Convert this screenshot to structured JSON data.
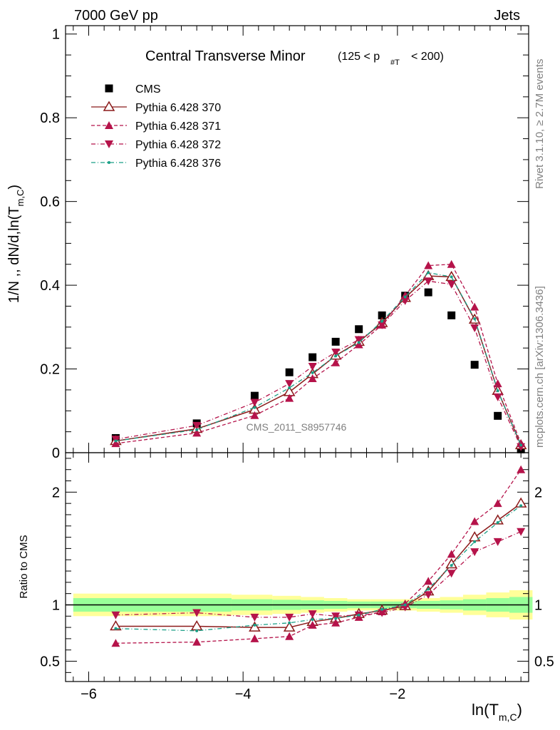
{
  "header": {
    "left_label": "7000 GeV pp",
    "right_label": "Jets"
  },
  "chart_data": [
    {
      "type": "scatter",
      "panel": "main",
      "title": "Central Transverse Minor",
      "title_range": "(125 < p",
      "title_range_sub": "#T",
      "title_range_end": "< 200)",
      "ylabel": "1/N ,, dN/d,ln(T",
      "ylabel_sub": "m,C",
      "ylabel_end": ")",
      "xlabel": "ln(T",
      "xlabel_sub": "m,C",
      "xlabel_end": ")",
      "xlim": [
        -6.3,
        -0.3
      ],
      "ylim": [
        0,
        1.02
      ],
      "xticks": [
        -6,
        -4,
        -2
      ],
      "xtick_labels": [
        "−6",
        "−4",
        "−2"
      ],
      "yticks": [
        0,
        0.2,
        0.4,
        0.6,
        0.8,
        1
      ],
      "ytick_labels": [
        "0",
        "0.2",
        "0.4",
        "0.6",
        "0.8",
        "1"
      ],
      "legend_position": "top-left",
      "watermark": "CMS_2011_S8957746",
      "side_label_top": "Rivet 3.1.10, ≥ 2.7M events",
      "side_label_bottom": "mcplots.cern.ch [arXiv:1306.3436]",
      "x": [
        -5.65,
        -4.6,
        -3.85,
        -3.4,
        -3.1,
        -2.8,
        -2.5,
        -2.2,
        -1.9,
        -1.6,
        -1.3,
        -1.0,
        -0.7,
        -0.4
      ],
      "series": [
        {
          "name": "CMS",
          "color": "#000000",
          "marker": "square",
          "line": "none",
          "values": [
            0.035,
            0.07,
            0.136,
            0.192,
            0.228,
            0.265,
            0.295,
            0.328,
            0.375,
            0.383,
            0.328,
            0.21,
            0.088,
            0.008
          ]
        },
        {
          "name": "Pythia 6.428 370",
          "color": "#8b1a1a",
          "marker": "triangle-up-open",
          "line": "solid",
          "values": [
            0.028,
            0.057,
            0.103,
            0.145,
            0.188,
            0.232,
            0.265,
            0.31,
            0.37,
            0.422,
            0.42,
            0.318,
            0.148,
            0.018
          ]
        },
        {
          "name": "Pythia 6.428 371",
          "color": "#b5134a",
          "marker": "triangle-up",
          "line": "dashed",
          "values": [
            0.022,
            0.047,
            0.089,
            0.13,
            0.177,
            0.215,
            0.258,
            0.305,
            0.375,
            0.447,
            0.45,
            0.348,
            0.165,
            0.022
          ]
        },
        {
          "name": "Pythia 6.428 372",
          "color": "#b5134a",
          "marker": "triangle-down",
          "line": "dashdot",
          "values": [
            0.032,
            0.065,
            0.12,
            0.165,
            0.206,
            0.24,
            0.27,
            0.305,
            0.363,
            0.41,
            0.402,
            0.298,
            0.133,
            0.014
          ]
        },
        {
          "name": "Pythia 6.428 376",
          "color": "#1a9f86",
          "marker": "dot",
          "line": "dashdot",
          "values": [
            0.028,
            0.055,
            0.108,
            0.155,
            0.191,
            0.231,
            0.263,
            0.314,
            0.372,
            0.43,
            0.42,
            0.32,
            0.148,
            0.018
          ]
        }
      ]
    },
    {
      "type": "line",
      "panel": "ratio",
      "ylabel": "Ratio to CMS",
      "xlim": [
        -6.3,
        -0.3
      ],
      "ylim": [
        0.32,
        2.35
      ],
      "yticks": [
        0.5,
        1,
        2
      ],
      "ytick_labels": [
        "0.5",
        "1",
        "2"
      ],
      "x": [
        -5.65,
        -4.6,
        -3.85,
        -3.4,
        -3.1,
        -2.8,
        -2.5,
        -2.2,
        -1.9,
        -1.6,
        -1.3,
        -1.0,
        -0.7,
        -0.4
      ],
      "bands": {
        "edges": [
          -6.2,
          -5.1,
          -4.15,
          -3.62,
          -3.25,
          -2.95,
          -2.65,
          -2.35,
          -2.05,
          -1.75,
          -1.45,
          -1.15,
          -0.85,
          -0.55,
          -0.25
        ],
        "yellow_half_width": [
          0.1,
          0.1,
          0.09,
          0.08,
          0.07,
          0.06,
          0.05,
          0.05,
          0.05,
          0.06,
          0.07,
          0.09,
          0.11,
          0.13
        ],
        "green_half_width": [
          0.06,
          0.06,
          0.05,
          0.045,
          0.04,
          0.035,
          0.03,
          0.03,
          0.03,
          0.035,
          0.04,
          0.05,
          0.06,
          0.07
        ],
        "yellow_color": "#ffff99",
        "green_color": "#99ff99"
      },
      "series": [
        {
          "name": "Pythia 6.428 370",
          "color": "#8b1a1a",
          "marker": "triangle-up-open",
          "line": "solid",
          "values": [
            0.81,
            0.81,
            0.8,
            0.8,
            0.85,
            0.88,
            0.92,
            0.95,
            0.99,
            1.12,
            1.36,
            1.6,
            1.75,
            1.9
          ]
        },
        {
          "name": "Pythia 6.428 371",
          "color": "#b5134a",
          "marker": "triangle-up",
          "line": "dashed",
          "values": [
            0.66,
            0.67,
            0.7,
            0.72,
            0.82,
            0.84,
            0.89,
            0.94,
            1.01,
            1.21,
            1.45,
            1.74,
            1.9,
            2.2
          ]
        },
        {
          "name": "Pythia 6.428 372",
          "color": "#b5134a",
          "marker": "triangle-down",
          "line": "dashdot",
          "values": [
            0.91,
            0.93,
            0.89,
            0.89,
            0.92,
            0.9,
            0.91,
            0.93,
            0.98,
            1.09,
            1.28,
            1.47,
            1.56,
            1.65
          ]
        },
        {
          "name": "Pythia 6.428 376",
          "color": "#1a9f86",
          "marker": "dot",
          "line": "dashdot",
          "values": [
            0.79,
            0.77,
            0.82,
            0.84,
            0.87,
            0.88,
            0.91,
            0.96,
            1.0,
            1.14,
            1.35,
            1.56,
            1.73,
            1.88
          ]
        }
      ]
    }
  ]
}
